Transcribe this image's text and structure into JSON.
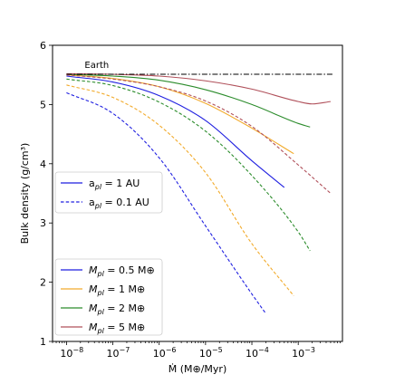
{
  "chart_data": {
    "type": "line",
    "xlabel": "Ṁ (M⊕/Myr)",
    "ylabel": "Bulk density (g/cm³)",
    "xscale": "log",
    "xlim": [
      5e-09,
      0.009
    ],
    "ylim": [
      1,
      6
    ],
    "xticks": [
      {
        "value": 1e-08,
        "base": "10",
        "exp": "−8"
      },
      {
        "value": 1e-07,
        "base": "10",
        "exp": "−7"
      },
      {
        "value": 1e-06,
        "base": "10",
        "exp": "−6"
      },
      {
        "value": 1e-05,
        "base": "10",
        "exp": "−5"
      },
      {
        "value": 0.0001,
        "base": "10",
        "exp": "−4"
      },
      {
        "value": 0.001,
        "base": "10",
        "exp": "−3"
      }
    ],
    "yticks": [
      "1",
      "2",
      "3",
      "4",
      "5",
      "6"
    ],
    "grid": false,
    "reference_line": {
      "label": "Earth",
      "y": 5.51,
      "color": "#000000",
      "style": "dashdot"
    },
    "legend_style": {
      "placement": "center-left",
      "entries": [
        {
          "label": "a",
          "sub": "pl",
          "rest": " = 1 AU",
          "style": "solid"
        },
        {
          "label": "a",
          "sub": "pl",
          "rest": " = 0.1 AU",
          "style": "dashed"
        }
      ]
    },
    "legend_mass": {
      "placement": "lower-left",
      "entries": [
        {
          "label": "M",
          "sub": "pl",
          "rest": " = 0.5 M⊕",
          "color": "#1f1fe0"
        },
        {
          "label": "M",
          "sub": "pl",
          "rest": " = 1 M⊕",
          "color": "#f2ab2c"
        },
        {
          "label": "M",
          "sub": "pl",
          "rest": " = 2 M⊕",
          "color": "#2c8c2c"
        },
        {
          "label": "M",
          "sub": "pl",
          "rest": " = 5 M⊕",
          "color": "#b0505a"
        }
      ]
    },
    "series": [
      {
        "mass": "0.5",
        "a": "1 AU",
        "style": "solid",
        "color": "#1f1fe0",
        "x": [
          1e-08,
          1e-07,
          1e-06,
          1e-05,
          0.0001,
          0.0005
        ],
        "y": [
          5.48,
          5.38,
          5.15,
          4.73,
          4.05,
          3.6
        ]
      },
      {
        "mass": "1",
        "a": "1 AU",
        "style": "solid",
        "color": "#f2ab2c",
        "x": [
          1e-08,
          1e-07,
          1e-06,
          1e-05,
          0.0001,
          0.0008
        ],
        "y": [
          5.5,
          5.44,
          5.3,
          5.02,
          4.6,
          4.17
        ]
      },
      {
        "mass": "2",
        "a": "1 AU",
        "style": "solid",
        "color": "#2c8c2c",
        "x": [
          1e-08,
          1e-07,
          1e-06,
          1e-05,
          0.0001,
          0.001,
          0.0018
        ],
        "y": [
          5.51,
          5.48,
          5.41,
          5.25,
          5.0,
          4.68,
          4.62
        ]
      },
      {
        "mass": "5",
        "a": "1 AU",
        "style": "solid",
        "color": "#b0505a",
        "x": [
          1e-08,
          1e-07,
          1e-06,
          1e-05,
          0.0001,
          0.001,
          0.002,
          0.005
        ],
        "y": [
          5.52,
          5.51,
          5.48,
          5.4,
          5.26,
          5.05,
          5.01,
          5.05
        ]
      },
      {
        "mass": "0.5",
        "a": "0.1 AU",
        "style": "dashed",
        "color": "#1f1fe0",
        "x": [
          1e-08,
          1e-07,
          1e-06,
          1e-05,
          0.0001,
          0.0002
        ],
        "y": [
          5.2,
          4.85,
          4.1,
          2.95,
          1.8,
          1.47
        ]
      },
      {
        "mass": "1",
        "a": "0.1 AU",
        "style": "dashed",
        "color": "#f2ab2c",
        "x": [
          1e-08,
          1e-07,
          1e-06,
          1e-05,
          0.0001,
          0.0008
        ],
        "y": [
          5.33,
          5.12,
          4.65,
          3.85,
          2.65,
          1.77
        ]
      },
      {
        "mass": "2",
        "a": "0.1 AU",
        "style": "dashed",
        "color": "#2c8c2c",
        "x": [
          1e-08,
          1e-07,
          1e-06,
          1e-05,
          0.0001,
          0.001,
          0.0018
        ],
        "y": [
          5.43,
          5.32,
          5.04,
          4.55,
          3.8,
          2.85,
          2.53
        ]
      },
      {
        "mass": "5",
        "a": "0.1 AU",
        "style": "dashed",
        "color": "#b0505a",
        "x": [
          1e-08,
          1e-07,
          1e-06,
          1e-05,
          0.0001,
          0.001,
          0.005
        ],
        "y": [
          5.5,
          5.43,
          5.3,
          5.06,
          4.63,
          3.98,
          3.5
        ]
      }
    ]
  }
}
